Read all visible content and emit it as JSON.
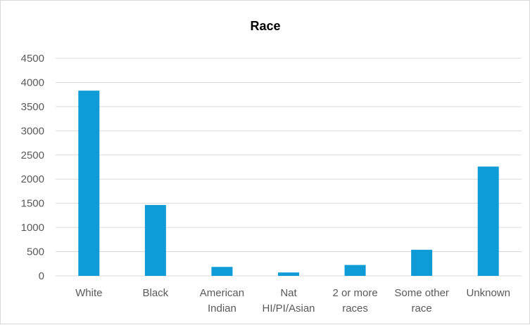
{
  "chart_data": {
    "type": "bar",
    "title": "Race",
    "xlabel": "",
    "ylabel": "",
    "categories": [
      [
        "White"
      ],
      [
        "Black"
      ],
      [
        "American",
        "Indian"
      ],
      [
        "Nat",
        "HI/PI/Asian"
      ],
      [
        "2 or more",
        "races"
      ],
      [
        "Some other",
        "race"
      ],
      [
        "Unknown"
      ]
    ],
    "values": [
      3830,
      1465,
      185,
      70,
      225,
      540,
      2260
    ],
    "ylim": [
      0,
      4500
    ],
    "yticks": [
      0,
      500,
      1000,
      1500,
      2000,
      2500,
      3000,
      3500,
      4000,
      4500
    ],
    "grid": true,
    "legend": "none",
    "bar_color": "#0E9BD6",
    "grid_color": "#d9d9d9"
  }
}
